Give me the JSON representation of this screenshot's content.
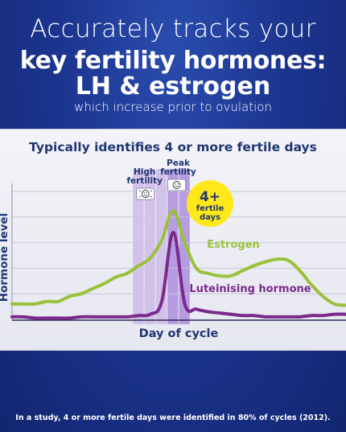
{
  "headline": {
    "line1": "Accurately tracks your",
    "line2": "key fertility hormones:",
    "line3": "LH & estrogen",
    "line4": "which increase prior to ovulation"
  },
  "footnote": "In a study, 4 or more fertile days were identified in 80% of cycles (2012).",
  "colors": {
    "estrogen": "#9ac13a",
    "lh": "#7a2a8c",
    "high_band": "#c9b3e5",
    "peak_band": "#a987dd",
    "badge": "#ffe81a",
    "title": "#1f3771"
  },
  "chart_data": {
    "type": "line",
    "title": "Typically identifies 4 or more fertile days",
    "xlabel": "Day of cycle",
    "ylabel": "Hormone level",
    "grid": true,
    "xlim": [
      0,
      29
    ],
    "ylim": [
      0,
      100
    ],
    "high_fertility_days": [
      11,
      12,
      13
    ],
    "peak_fertility_days": [
      14,
      15
    ],
    "band_labels": {
      "high": [
        "High",
        "fertility"
      ],
      "peak": [
        "Peak",
        "fertility"
      ]
    },
    "badge": {
      "big": "4+",
      "line1": "fertile",
      "line2": "days"
    },
    "icons": {
      "high": "flashing-smiley-icon",
      "peak": "smiley-icon"
    },
    "series": [
      {
        "name": "Estrogen",
        "color": "#9ac13a",
        "x": [
          0,
          1,
          2,
          3,
          4,
          5,
          6,
          7,
          8,
          9,
          10,
          11,
          12,
          13,
          14,
          15,
          16,
          17,
          18,
          19,
          20,
          21,
          22,
          23,
          24,
          25,
          26,
          27,
          28,
          29
        ],
        "y": [
          12,
          12,
          12,
          14,
          14,
          18,
          20,
          24,
          28,
          33,
          36,
          42,
          48,
          62,
          85,
          60,
          40,
          36,
          34,
          34,
          38,
          42,
          45,
          47,
          46,
          38,
          27,
          18,
          12,
          11
        ]
      },
      {
        "name": "Luteinising hormone",
        "color": "#7a2a8c",
        "x": [
          0,
          1,
          2,
          3,
          4,
          5,
          6,
          7,
          8,
          9,
          10,
          11,
          12,
          13,
          14,
          15,
          16,
          17,
          18,
          19,
          20,
          21,
          22,
          23,
          24,
          25,
          26,
          27,
          28,
          29
        ],
        "y": [
          2,
          2,
          1,
          1,
          1,
          1,
          2,
          2,
          2,
          2,
          2,
          3,
          4,
          14,
          68,
          12,
          8,
          6,
          5,
          4,
          3,
          3,
          2,
          2,
          2,
          2,
          3,
          3,
          4,
          4
        ]
      }
    ]
  }
}
